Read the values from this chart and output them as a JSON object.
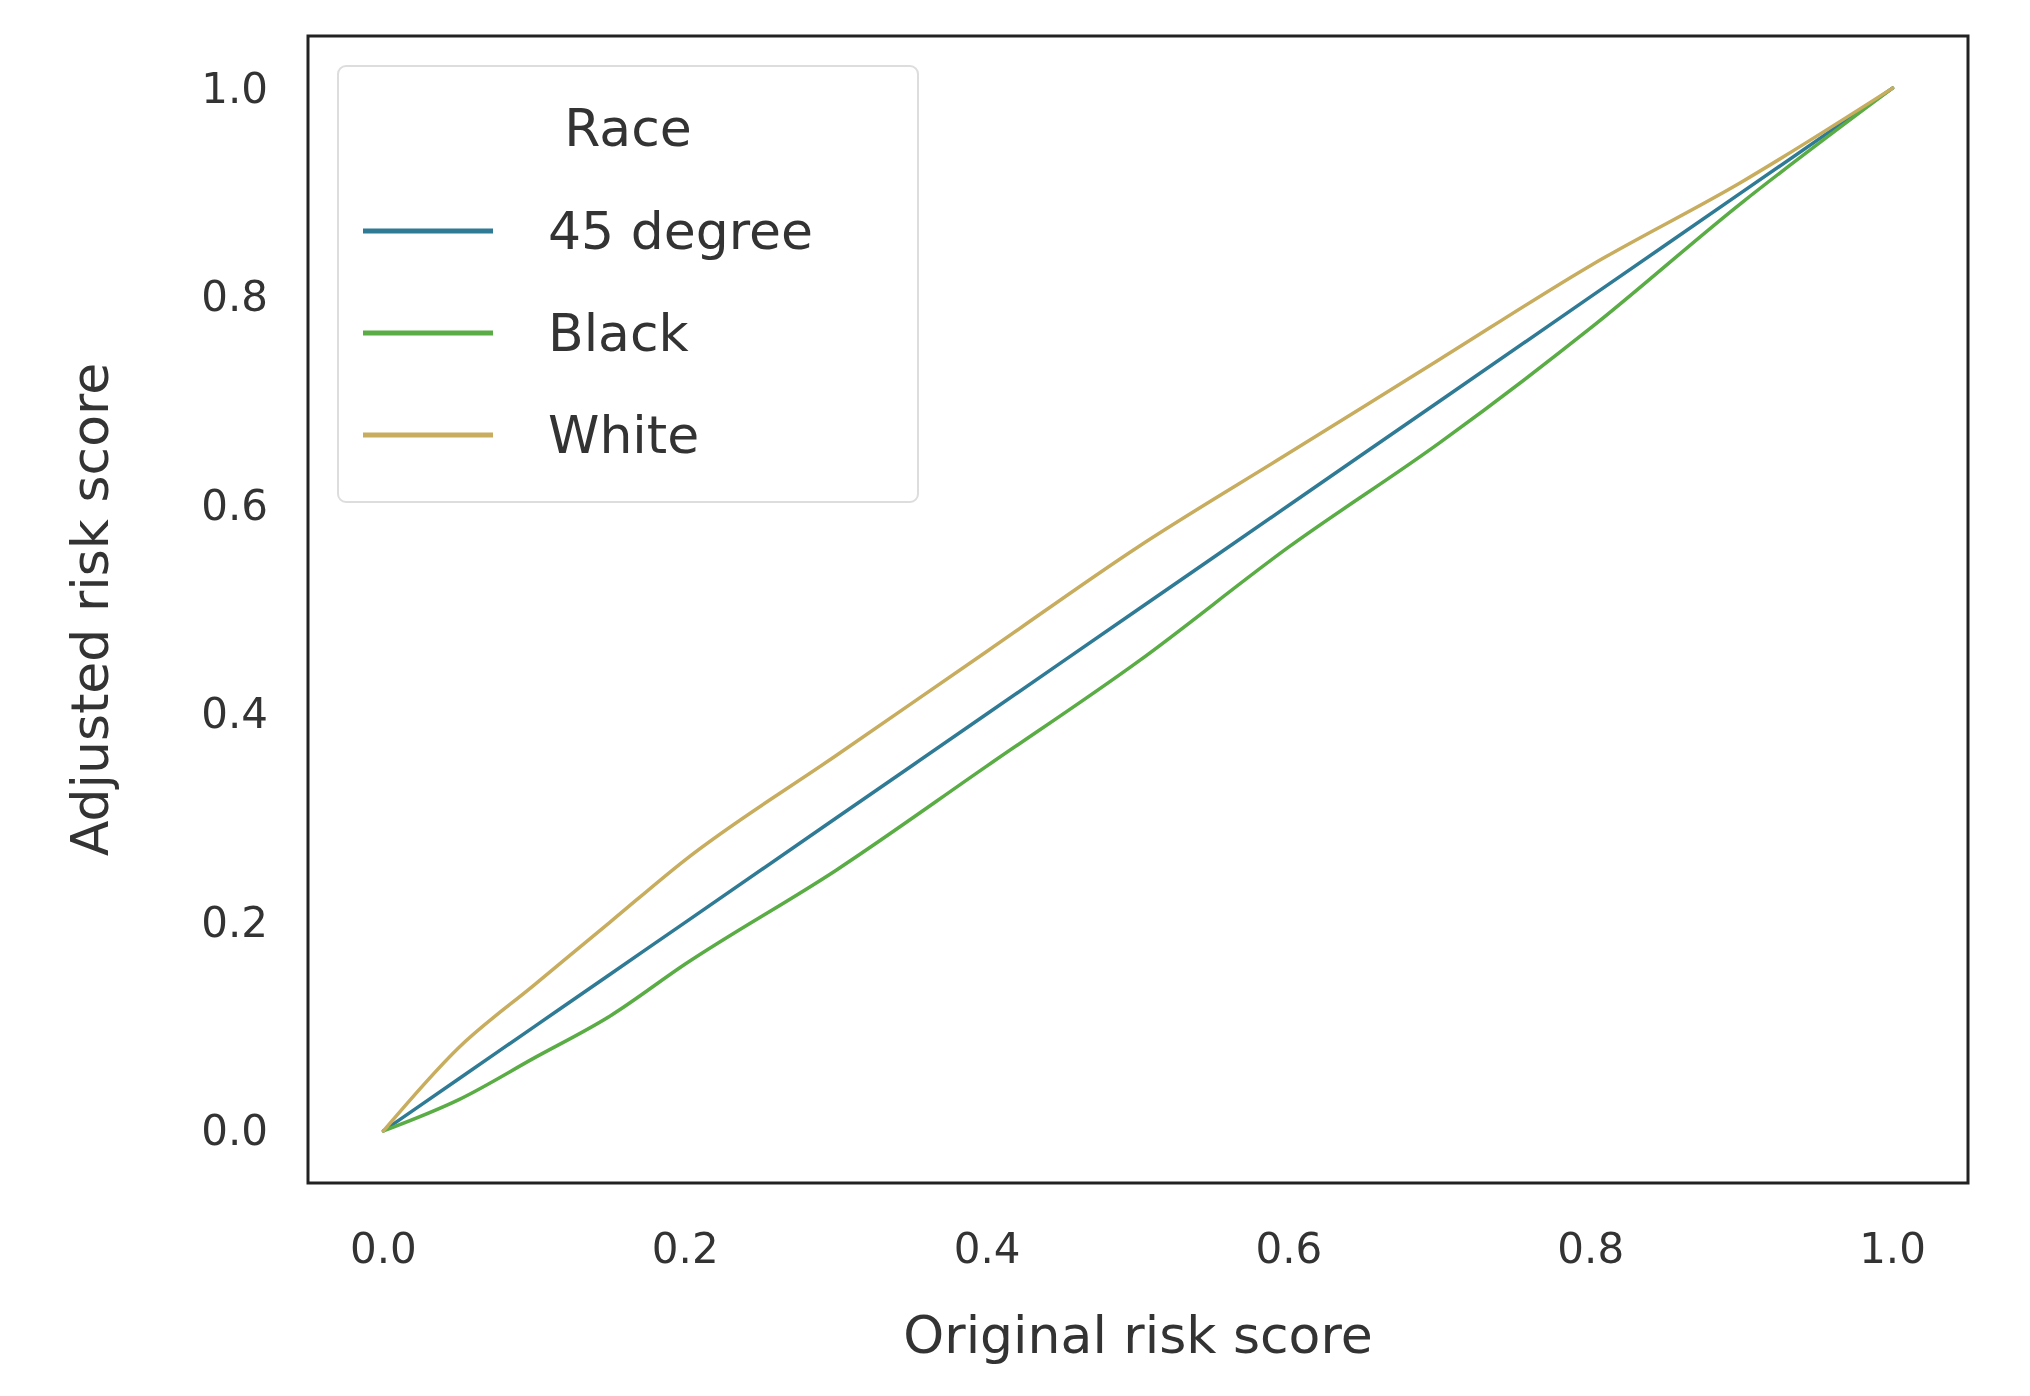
{
  "chart_data": {
    "type": "line",
    "xlabel": "Original risk score",
    "ylabel": "Adjusted risk score",
    "legend_title": "Race",
    "x": [
      0,
      0.05,
      0.1,
      0.15,
      0.2,
      0.3,
      0.4,
      0.5,
      0.6,
      0.7,
      0.8,
      0.9,
      1
    ],
    "series": [
      {
        "name": "45 degree",
        "color": "#2f7a95",
        "values": [
          0,
          0.05,
          0.1,
          0.15,
          0.2,
          0.3,
          0.4,
          0.5,
          0.6,
          0.7,
          0.8,
          0.9,
          1
        ]
      },
      {
        "name": "Black",
        "color": "#5aac44",
        "values": [
          0,
          0.03,
          0.07,
          0.11,
          0.16,
          0.25,
          0.35,
          0.45,
          0.56,
          0.66,
          0.77,
          0.89,
          1
        ]
      },
      {
        "name": "White",
        "color": "#c8ad5f",
        "values": [
          0,
          0.08,
          0.14,
          0.2,
          0.26,
          0.36,
          0.46,
          0.56,
          0.65,
          0.74,
          0.83,
          0.91,
          1
        ]
      }
    ],
    "xlim": [
      -0.05,
      1.05
    ],
    "ylim": [
      -0.05,
      1.05
    ],
    "xticks": [
      {
        "value": 0,
        "label": "0.0"
      },
      {
        "value": 0.2,
        "label": "0.2"
      },
      {
        "value": 0.4,
        "label": "0.4"
      },
      {
        "value": 0.6,
        "label": "0.6"
      },
      {
        "value": 0.8,
        "label": "0.8"
      },
      {
        "value": 1,
        "label": "1.0"
      }
    ],
    "yticks": [
      {
        "value": 0,
        "label": "0.0"
      },
      {
        "value": 0.2,
        "label": "0.2"
      },
      {
        "value": 0.4,
        "label": "0.4"
      },
      {
        "value": 0.6,
        "label": "0.6"
      },
      {
        "value": 0.8,
        "label": "0.8"
      },
      {
        "value": 1,
        "label": "1.0"
      }
    ],
    "grid": false,
    "legend": "top left",
    "line_style": "solid",
    "marker": "none"
  }
}
